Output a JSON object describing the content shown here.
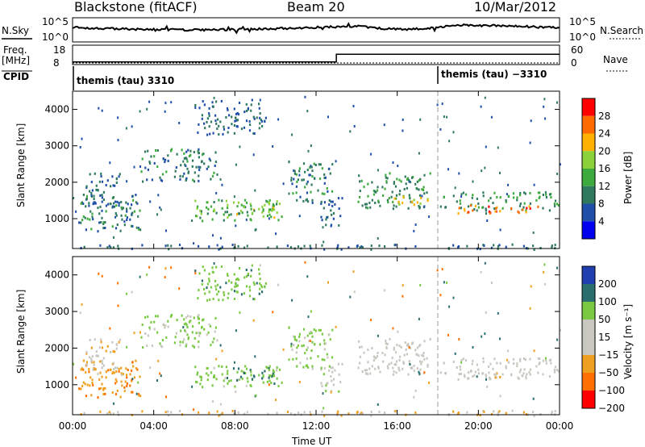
{
  "header": {
    "station": "Blackstone (fitACF)",
    "beam": "Beam 20",
    "date": "10/Mar/2012"
  },
  "summary": {
    "nsky_label": "N.Sky",
    "nsearch_label": "N.Search",
    "noise_ticks": [
      "10^5",
      "10^0"
    ],
    "freq_label_1": "Freq.",
    "freq_label_2": "[MHz]",
    "freq_ticks": [
      "18",
      "8"
    ],
    "nave_label": "Nave",
    "nave_ticks": [
      "60",
      "0"
    ],
    "cpid_label": "CPID",
    "cpid_1": "themis (tau) 3310",
    "cpid_2": "themis (tau) −3310"
  },
  "panels": {
    "power": {
      "ylabel": "Slant Range [km]",
      "cbar_label": "Power [dB]",
      "cbar_ticks": [
        "28",
        "24",
        "20",
        "16",
        "12",
        "8",
        "4"
      ]
    },
    "velocity": {
      "ylabel": "Slant Range [km]",
      "cbar_label": "Velocity [m s⁻¹]",
      "cbar_ticks": [
        "200",
        "100",
        "50",
        "15",
        "−15",
        "−50",
        "−100",
        "−200"
      ]
    }
  },
  "colors": {
    "power_scale": [
      "#0000ee",
      "#1f4fa8",
      "#2f7a5e",
      "#3caa3c",
      "#8ad13a",
      "#ffb000",
      "#ff6a00",
      "#ff0000"
    ],
    "velocity_scale": [
      "#1f3fb0",
      "#2a6e6e",
      "#7ac943",
      "#c8c8c0",
      "#c8c8c0",
      "#f0a020",
      "#ff7000",
      "#ff0000"
    ]
  },
  "chart_data": {
    "type": "heatmap",
    "x_tick_labels": [
      "00:00",
      "04:00",
      "08:00",
      "12:00",
      "16:00",
      "20:00",
      "00:00"
    ],
    "xlabel": "Time UT",
    "x_range_hours": [
      0,
      24
    ],
    "y_tick_labels": [
      "1000",
      "2000",
      "3000",
      "4000"
    ],
    "y_range_km": [
      180,
      4500
    ],
    "cpid_change_hour": 18,
    "freq_step_hour": 13,
    "freq_mhz": {
      "before": 10,
      "after": 16
    },
    "echo_regions": [
      {
        "t0": 0.1,
        "t1": 3.3,
        "r0": 650,
        "r1": 1700,
        "power": 10,
        "velocity": -60
      },
      {
        "t0": 0.6,
        "t1": 2.4,
        "r0": 1200,
        "r1": 2300,
        "power": 8,
        "velocity": -20
      },
      {
        "t0": 3.3,
        "t1": 7.3,
        "r0": 2050,
        "r1": 2950,
        "power": 10,
        "velocity": 40
      },
      {
        "t0": 6.0,
        "t1": 9.5,
        "r0": 3300,
        "r1": 4300,
        "power": 8,
        "velocity": 60
      },
      {
        "t0": 6.0,
        "t1": 10.3,
        "r0": 950,
        "r1": 1550,
        "power": 14,
        "velocity": 50
      },
      {
        "t0": 7.8,
        "t1": 10.2,
        "r0": 1050,
        "r1": 1500,
        "power": 18,
        "velocity": 80
      },
      {
        "t0": 10.6,
        "t1": 12.8,
        "r0": 1400,
        "r1": 2600,
        "power": 10,
        "velocity": 40
      },
      {
        "t0": 12.2,
        "t1": 13.3,
        "r0": 800,
        "r1": 1600,
        "power": 8,
        "velocity": 20
      },
      {
        "t0": 14.0,
        "t1": 17.6,
        "r0": 1300,
        "r1": 2300,
        "power": 12,
        "velocity": 0
      },
      {
        "t0": 15.8,
        "t1": 17.6,
        "r0": 1350,
        "r1": 1650,
        "power": 20,
        "velocity": 0
      },
      {
        "t0": 18.1,
        "t1": 24.0,
        "r0": 1250,
        "r1": 1750,
        "power": 12,
        "velocity": 0
      },
      {
        "t0": 18.7,
        "t1": 23.0,
        "r0": 1150,
        "r1": 1400,
        "power": 26,
        "velocity": -10
      },
      {
        "t0": 0.0,
        "t1": 24.0,
        "r0": 180,
        "r1": 320,
        "power": 8,
        "velocity": -30
      }
    ]
  }
}
